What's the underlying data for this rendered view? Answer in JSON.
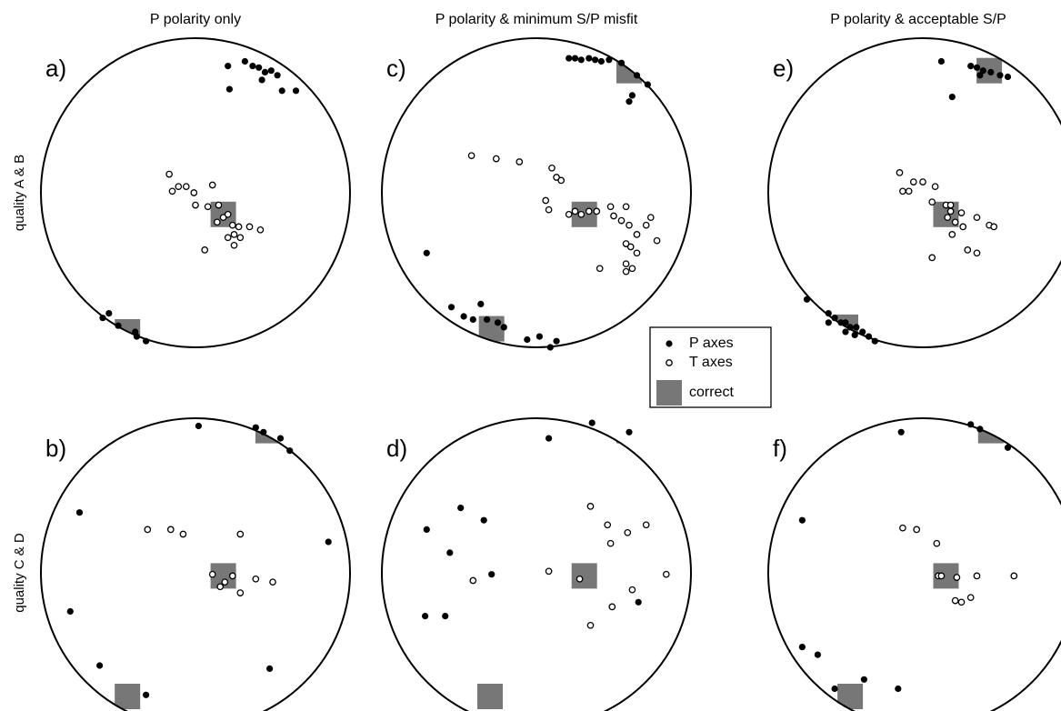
{
  "column_titles": [
    "P polarity only",
    "P polarity & minimum S/P misfit",
    "P polarity & acceptable S/P"
  ],
  "row_labels": [
    "quality A & B",
    "quality C & D"
  ],
  "legend": {
    "p_axes": "P axes",
    "t_axes": "T axes",
    "correct": "correct"
  },
  "chart_data": [
    {
      "type": "scatter",
      "label": "a)",
      "xlim": [
        -1,
        1
      ],
      "ylim": [
        -1,
        1
      ],
      "p_axes": {
        "x": [
          0.21,
          0.32,
          0.37,
          0.41,
          0.45,
          0.49,
          0.53,
          0.43,
          0.56,
          0.65,
          0.22,
          -0.56,
          -0.6,
          -0.5,
          -0.39,
          -0.32,
          -0.38
        ],
        "y": [
          0.82,
          0.85,
          0.82,
          0.81,
          0.78,
          0.79,
          0.76,
          0.73,
          0.66,
          0.66,
          0.67,
          -0.78,
          -0.81,
          -0.86,
          -0.9,
          -0.96,
          -0.93
        ]
      },
      "t_axes": {
        "x": [
          -0.17,
          -0.15,
          -0.11,
          -0.06,
          -0.01,
          0.11,
          0,
          0.08,
          0.15,
          0.18,
          0.21,
          0.14,
          0.24,
          0.28,
          0.35,
          0.42,
          0.25,
          0.21,
          0.25,
          0.06,
          0.29
        ],
        "y": [
          0.12,
          0.01,
          0.04,
          0.04,
          0,
          0.05,
          -0.08,
          -0.09,
          -0.08,
          -0.16,
          -0.14,
          -0.19,
          -0.21,
          -0.22,
          -0.22,
          -0.24,
          -0.27,
          -0.29,
          -0.34,
          -0.37,
          -0.29
        ]
      },
      "correct": {
        "x": [
          0.18,
          -0.44
        ],
        "y": [
          -0.14,
          -0.9
        ]
      }
    },
    {
      "type": "scatter",
      "label": "c)",
      "xlim": [
        -1,
        1
      ],
      "ylim": [
        -1,
        1
      ],
      "p_axes": {
        "x": [
          0.21,
          0.25,
          0.29,
          0.34,
          0.38,
          0.42,
          0.47,
          0.55,
          0.65,
          0.72,
          0.62,
          0.6,
          -0.71,
          -0.55,
          -0.47,
          -0.41,
          -0.36,
          -0.32,
          -0.25,
          -0.21,
          -0.06,
          0.02,
          0.13,
          0.09
        ],
        "y": [
          0.87,
          0.87,
          0.86,
          0.87,
          0.86,
          0.85,
          0.86,
          0.84,
          0.76,
          0.7,
          0.63,
          0.59,
          -0.39,
          -0.74,
          -0.8,
          -0.82,
          -0.72,
          -0.82,
          -0.84,
          -0.87,
          -0.95,
          -0.93,
          -0.96,
          -1.0
        ]
      },
      "t_axes": {
        "x": [
          -0.42,
          -0.26,
          -0.11,
          0.1,
          0.13,
          0.16,
          0.06,
          0.08,
          0.21,
          0.25,
          0.29,
          0.34,
          0.39,
          0.48,
          0.58,
          0.5,
          0.55,
          0.6,
          0.74,
          0.71,
          0.65,
          0.58,
          0.61,
          0.65,
          0.78,
          0.58,
          0.62,
          0.41,
          0.58
        ],
        "y": [
          0.24,
          0.22,
          0.2,
          0.16,
          0.1,
          0.08,
          -0.05,
          -0.11,
          -0.14,
          -0.12,
          -0.14,
          -0.12,
          -0.12,
          -0.09,
          -0.09,
          -0.15,
          -0.18,
          -0.21,
          -0.16,
          -0.21,
          -0.27,
          -0.33,
          -0.35,
          -0.39,
          -0.31,
          -0.46,
          -0.49,
          -0.49,
          -0.51
        ]
      },
      "correct": {
        "x": [
          0.31,
          0.6,
          -0.29
        ],
        "y": [
          -0.14,
          0.79,
          -0.88
        ]
      }
    },
    {
      "type": "scatter",
      "label": "e)",
      "xlim": [
        -1,
        1
      ],
      "ylim": [
        -1,
        1
      ],
      "p_axes": {
        "x": [
          0.12,
          0.31,
          0.35,
          0.39,
          0.44,
          0.5,
          0.55,
          0.37,
          0.19,
          -0.75,
          -0.61,
          -0.57,
          -0.53,
          -0.5,
          -0.47,
          -0.43,
          -0.39,
          -0.35,
          -0.31,
          -0.5,
          -0.44,
          -0.61
        ],
        "y": [
          0.85,
          0.82,
          0.81,
          0.79,
          0.78,
          0.76,
          0.75,
          0.76,
          0.62,
          -0.69,
          -0.78,
          -0.81,
          -0.84,
          -0.84,
          -0.87,
          -0.87,
          -0.9,
          -0.93,
          -0.96,
          -0.9,
          -0.92,
          -0.84
        ]
      },
      "t_axes": {
        "x": [
          -0.15,
          -0.06,
          0,
          0.08,
          -0.09,
          -0.13,
          0.06,
          0.15,
          0.18,
          0.16,
          0.21,
          0.25,
          0.26,
          0.35,
          0.43,
          0.46,
          0.19,
          0.29,
          0.35,
          0.06,
          0.18
        ],
        "y": [
          0.13,
          0.07,
          0.07,
          0.04,
          0.01,
          0.01,
          -0.06,
          -0.08,
          -0.12,
          -0.16,
          -0.19,
          -0.13,
          -0.22,
          -0.16,
          -0.21,
          -0.22,
          -0.27,
          -0.37,
          -0.39,
          -0.42,
          -0.08
        ]
      },
      "correct": {
        "x": [
          0.15,
          0.43,
          -0.5
        ],
        "y": [
          -0.14,
          0.79,
          -0.87
        ]
      }
    },
    {
      "type": "scatter",
      "label": "b)",
      "xlim": [
        -1,
        1
      ],
      "ylim": [
        -1,
        1
      ],
      "p_axes": {
        "x": [
          0.02,
          0.39,
          0.44,
          0.55,
          0.61,
          0.86,
          -0.75,
          -0.81,
          -0.62,
          -0.32,
          0.48
        ],
        "y": [
          0.95,
          0.94,
          0.91,
          0.87,
          0.79,
          0.2,
          0.39,
          -0.25,
          -0.6,
          -0.79,
          -0.62
        ]
      },
      "t_axes": {
        "x": [
          -0.31,
          -0.16,
          -0.08,
          0.29,
          0.11,
          0.19,
          0.24,
          0.16,
          0.29,
          0.39,
          0.5
        ],
        "y": [
          0.28,
          0.28,
          0.25,
          0.25,
          -0.01,
          -0.06,
          -0.02,
          -0.09,
          -0.13,
          -0.04,
          -0.06
        ]
      },
      "correct": {
        "x": [
          0.18,
          0.47,
          -0.44
        ],
        "y": [
          -0.02,
          0.92,
          -0.8
        ]
      }
    },
    {
      "type": "scatter",
      "label": "d)",
      "xlim": [
        -1,
        1
      ],
      "ylim": [
        -1,
        1
      ],
      "p_axes": {
        "x": [
          0.36,
          0.6,
          0.08,
          -0.49,
          -0.34,
          -0.71,
          -0.29,
          -0.56,
          -0.72,
          -0.59,
          0.66
        ],
        "y": [
          0.97,
          0.91,
          0.87,
          0.42,
          0.34,
          0.28,
          -0.01,
          0.13,
          -0.28,
          -0.28,
          -0.19
        ]
      },
      "t_axes": {
        "x": [
          0.35,
          0.46,
          0.71,
          0.59,
          0.48,
          0.08,
          -0.41,
          0.28,
          0.84,
          0.62,
          0.49,
          0.35
        ],
        "y": [
          0.43,
          0.31,
          0.31,
          0.26,
          0.19,
          0.01,
          -0.05,
          -0.04,
          -0.01,
          -0.11,
          -0.22,
          -0.34
        ]
      },
      "correct": {
        "x": [
          0.31,
          0.6,
          -0.3
        ],
        "y": [
          -0.02,
          0.92,
          -0.8
        ]
      }
    },
    {
      "type": "scatter",
      "label": "f)",
      "xlim": [
        -1,
        1
      ],
      "ylim": [
        -1,
        1
      ],
      "p_axes": {
        "x": [
          -0.14,
          0.31,
          0.37,
          0.55,
          -0.78,
          -0.78,
          -0.68,
          -0.38,
          -0.16,
          -0.57
        ],
        "y": [
          0.91,
          0.96,
          0.93,
          0.81,
          0.34,
          -0.48,
          -0.53,
          -0.69,
          -0.75,
          -0.75
        ]
      },
      "t_axes": {
        "x": [
          -0.13,
          -0.04,
          0.09,
          0.1,
          0.12,
          0.22,
          0.35,
          0.59,
          0.21,
          0.25,
          0.31
        ],
        "y": [
          0.29,
          0.28,
          0.19,
          -0.02,
          -0.02,
          -0.03,
          -0.02,
          -0.02,
          -0.18,
          -0.19,
          -0.16
        ]
      },
      "correct": {
        "x": [
          0.15,
          0.44,
          -0.47
        ],
        "y": [
          -0.02,
          0.92,
          -0.8
        ]
      }
    }
  ]
}
